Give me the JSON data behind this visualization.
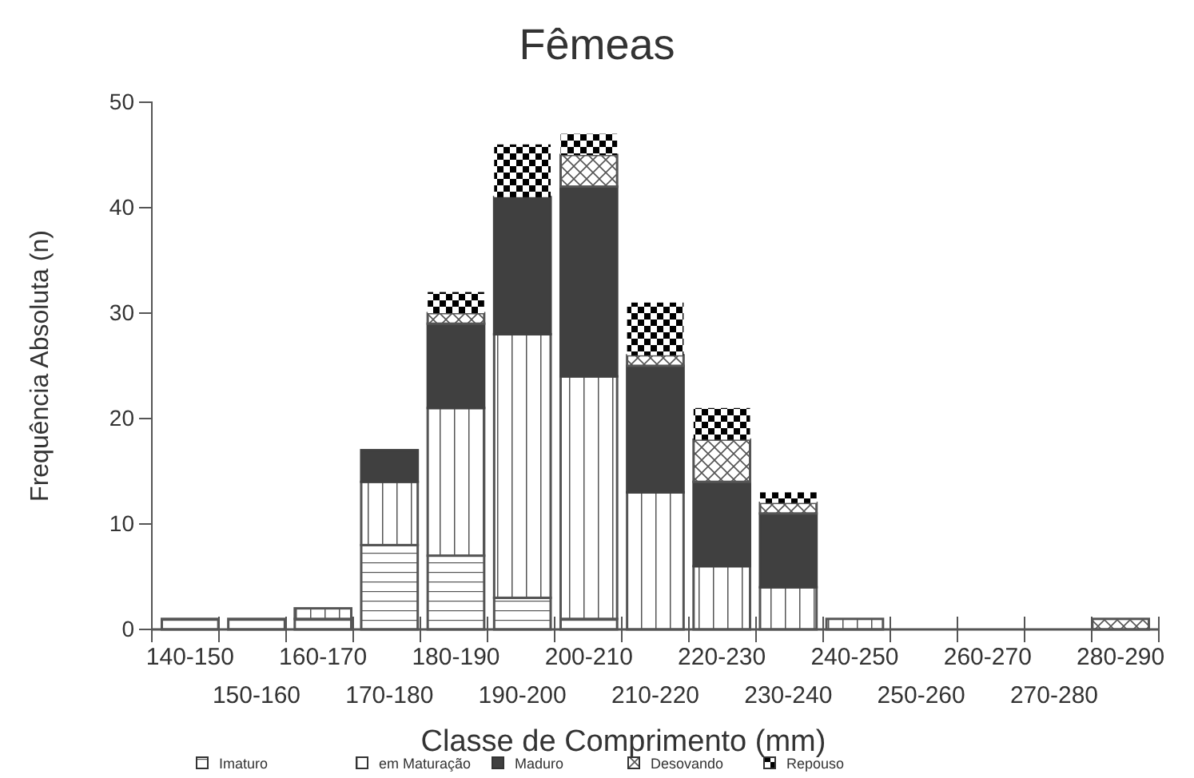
{
  "chart_data": {
    "type": "bar",
    "title": "Fêmeas",
    "xlabel": "Classe de Comprimento (mm)",
    "ylabel": "Frequência Absoluta (n)",
    "categories": [
      "140-150",
      "150-160",
      "160-170",
      "170-180",
      "180-190",
      "190-200",
      "200-210",
      "210-220",
      "220-230",
      "230-240",
      "240-250",
      "250-260",
      "260-270",
      "270-280",
      "280-290"
    ],
    "stacked": true,
    "ylim": [
      0,
      50
    ],
    "yticks": [
      0,
      10,
      20,
      30,
      40,
      50
    ],
    "grid": false,
    "legend": "bottom",
    "series": [
      {
        "name": "Imaturo",
        "color": "#555555",
        "values": [
          1,
          1,
          1,
          8,
          7,
          3,
          1,
          0,
          0,
          0,
          0,
          0,
          0,
          0,
          0
        ]
      },
      {
        "name": "em Maturação",
        "color": "#555555",
        "values": [
          0,
          0,
          1,
          6,
          14,
          25,
          23,
          13,
          6,
          4,
          1,
          0,
          0,
          0,
          0
        ]
      },
      {
        "name": "Maduro",
        "color": "#404040",
        "values": [
          0,
          0,
          0,
          3,
          8,
          13,
          18,
          12,
          8,
          7,
          0,
          0,
          0,
          0,
          0
        ]
      },
      {
        "name": "Desovando",
        "color": "#555555",
        "values": [
          0,
          0,
          0,
          0,
          1,
          0,
          3,
          1,
          4,
          1,
          0,
          0,
          0,
          0,
          1
        ]
      },
      {
        "name": "Repouso",
        "color": "#000000",
        "values": [
          0,
          0,
          0,
          0,
          2,
          5,
          2,
          5,
          3,
          1,
          0,
          0,
          0,
          0,
          0
        ]
      }
    ]
  }
}
